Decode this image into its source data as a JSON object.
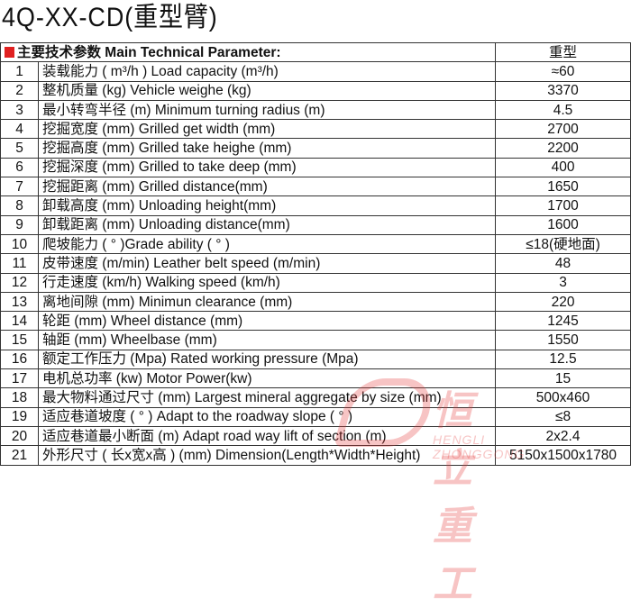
{
  "title": "4Q-XX-CD(重型臂)",
  "header": {
    "label": "主要技术参数 Main Technical Parameter:",
    "value_col": "重型",
    "accent": "#e02020"
  },
  "rows": [
    {
      "n": "1",
      "desc": "装载能力 ( m³/h ) Load capacity (m³/h)",
      "val": "≈60"
    },
    {
      "n": "2",
      "desc": "整机质量 (kg) Vehicle weighe (kg)",
      "val": "3370"
    },
    {
      "n": "3",
      "desc": "最小转弯半径 (m) Minimum turning radius (m)",
      "val": "4.5"
    },
    {
      "n": "4",
      "desc": "挖掘宽度 (mm) Grilled get width (mm)",
      "val": "2700"
    },
    {
      "n": "5",
      "desc": "挖掘高度 (mm) Grilled take heighe (mm)",
      "val": "2200"
    },
    {
      "n": "6",
      "desc": "挖掘深度 (mm) Grilled to take deep (mm)",
      "val": "400"
    },
    {
      "n": "7",
      "desc": "挖掘距离 (mm) Grilled distance(mm)",
      "val": "1650"
    },
    {
      "n": "8",
      "desc": "卸载高度 (mm) Unloading height(mm)",
      "val": "1700"
    },
    {
      "n": "9",
      "desc": "卸载距离 (mm) Unloading distance(mm)",
      "val": "1600"
    },
    {
      "n": "10",
      "desc": "爬坡能力 ( ° )Grade ability ( ° )",
      "val": "≤18(硬地面)"
    },
    {
      "n": "11",
      "desc": "皮带速度 (m/min) Leather  belt speed (m/min)",
      "val": "48"
    },
    {
      "n": "12",
      "desc": "行走速度 (km/h) Walking speed (km/h)",
      "val": "3"
    },
    {
      "n": "13",
      "desc": "离地间隙 (mm) Minimun clearance (mm)",
      "val": "220"
    },
    {
      "n": "14",
      "desc": "轮距 (mm) Wheel distance (mm)",
      "val": "1245"
    },
    {
      "n": "15",
      "desc": "轴距 (mm) Wheelbase (mm)",
      "val": "1550"
    },
    {
      "n": "16",
      "desc": "额定工作压力 (Mpa) Rated working pressure (Mpa)",
      "val": "12.5"
    },
    {
      "n": "17",
      "desc": "电机总功率 (kw) Motor Power(kw)",
      "val": "15"
    },
    {
      "n": "18",
      "desc": "最大物料通过尺寸 (mm) Largest mineral aggregate by size (mm)",
      "val": "500x460"
    },
    {
      "n": "19",
      "desc": "适应巷道坡度 ( ° ) Adapt to the roadway slope ( ° )",
      "val": "≤8"
    },
    {
      "n": "20",
      "desc": "适应巷道最小断面 (m) Adapt road way lift of section (m)",
      "val": "2x2.4"
    },
    {
      "n": "21",
      "desc": "外形尺寸 ( 长x宽x高 ) (mm) Dimension(Length*Width*Height)",
      "val": "5150x1500x1780"
    }
  ],
  "watermark": {
    "cn": "恒立重工",
    "en": "HENGLI ZHONGGONG"
  }
}
